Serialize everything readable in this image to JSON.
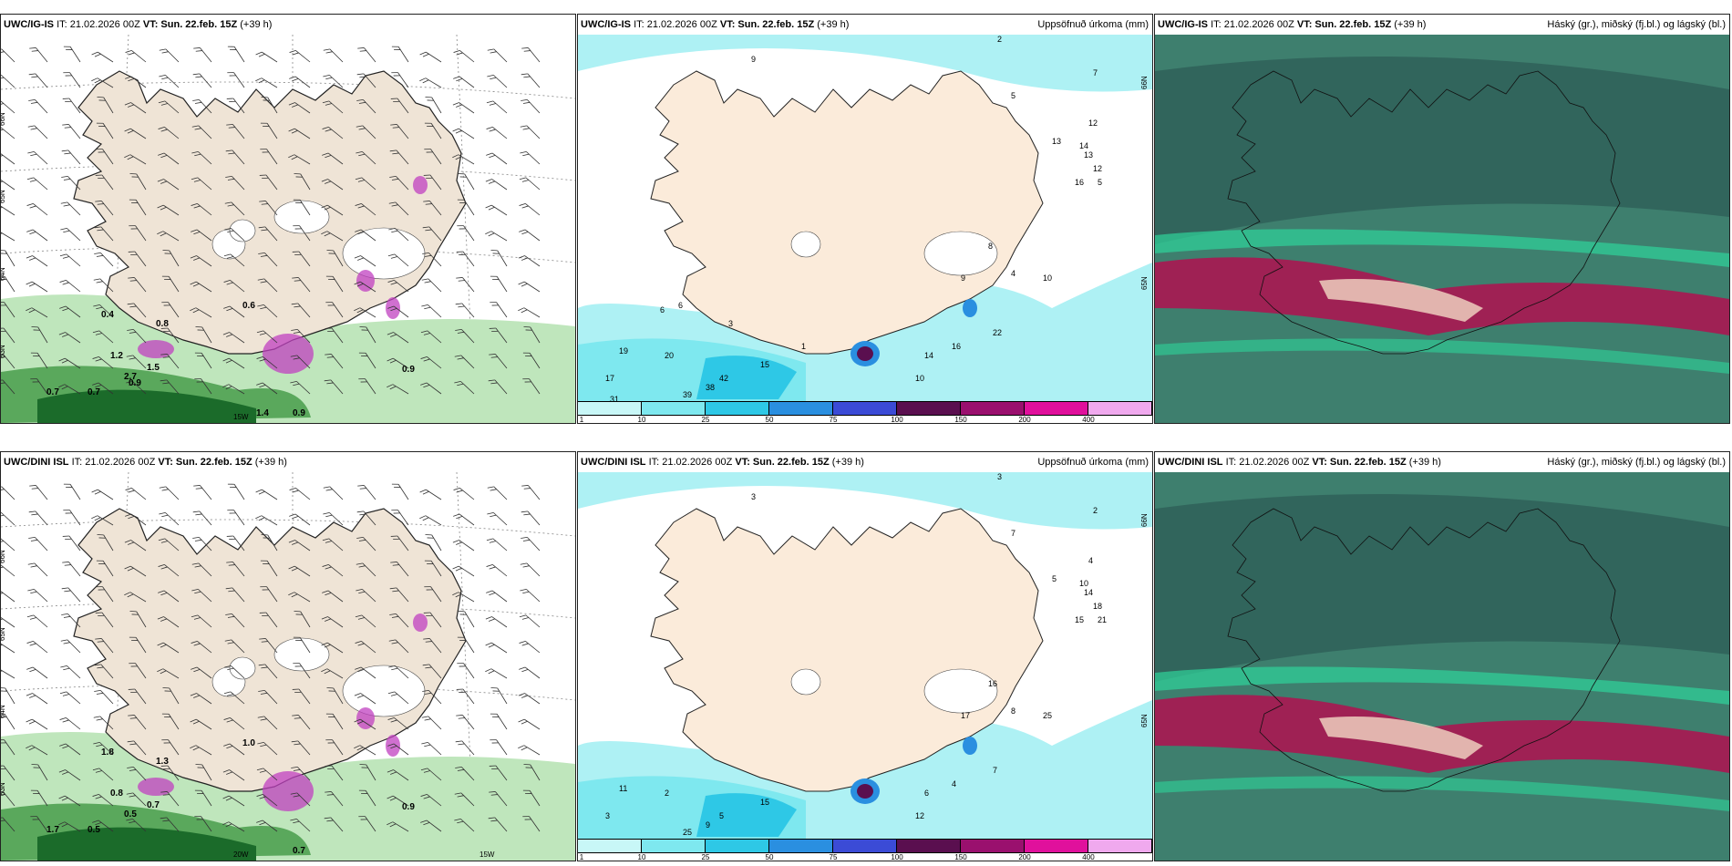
{
  "panels": [
    {
      "id": "p1",
      "kind": "wind",
      "model": "UWC/IG-IS",
      "it": "IT: 21.02.2026 00Z",
      "vt_label": "VT:",
      "vt": "Sun. 22.feb. 15Z",
      "lead": "(+39 h)",
      "right": "",
      "lat_labels": [
        "66N",
        "65N",
        "64N",
        "63N"
      ],
      "lon_labels": [
        "15W"
      ],
      "values": [
        "0.6",
        "0.7",
        "0.9",
        "0.9",
        "0.7",
        "2.7",
        "1.5",
        "0.8",
        "0.4",
        "1.2",
        "0.9",
        "1.4"
      ]
    },
    {
      "id": "p2",
      "kind": "precip",
      "model": "UWC/IG-IS",
      "it": "IT: 21.02.2026 00Z",
      "vt_label": "VT:",
      "vt": "Sun. 22.feb. 15Z",
      "lead": "(+39 h)",
      "right": "Uppsöfnuð úrkoma (mm)",
      "lat_labels": [
        "66N",
        "65N"
      ],
      "values": [
        "2",
        "9",
        "7",
        "5",
        "12",
        "13",
        "14",
        "13",
        "12",
        "16",
        "10",
        "5",
        "8",
        "9",
        "4",
        "22",
        "16",
        "14",
        "10",
        "19",
        "20",
        "17",
        "42",
        "38",
        "39",
        "15",
        "6",
        "6",
        "3",
        "1",
        "31"
      ]
    },
    {
      "id": "p3",
      "kind": "cloud",
      "model": "UWC/IG-IS",
      "it": "IT: 21.02.2026 00Z",
      "vt_label": "VT:",
      "vt": "Sun. 22.feb. 15Z",
      "lead": "(+39 h)",
      "right": "Háský (gr.), miðský (fj.bl.) og lágský (bl.)"
    },
    {
      "id": "p4",
      "kind": "wind",
      "model": "UWC/DINI ISL",
      "it": "IT: 21.02.2026 00Z",
      "vt_label": "VT:",
      "vt": "Sun. 22.feb. 15Z",
      "lead": "(+39 h)",
      "right": "",
      "lat_labels": [
        "66N",
        "65N",
        "64N",
        "63N"
      ],
      "lon_labels": [
        "20W",
        "15W"
      ],
      "values": [
        "1.0",
        "1.7",
        "0.9",
        "0.7",
        "0.5",
        "0.5",
        "0.7",
        "1.3",
        "1.8",
        "0.8"
      ]
    },
    {
      "id": "p5",
      "kind": "precip",
      "model": "UWC/DINI ISL",
      "it": "IT: 21.02.2026 00Z",
      "vt_label": "VT:",
      "vt": "Sun. 22.feb. 15Z",
      "lead": "(+39 h)",
      "right": "Uppsöfnuð úrkoma (mm)",
      "lat_labels": [
        "66N",
        "65N"
      ],
      "values": [
        "3",
        "3",
        "2",
        "7",
        "4",
        "5",
        "10",
        "14",
        "18",
        "15",
        "25",
        "21",
        "16",
        "17",
        "8",
        "7",
        "4",
        "6",
        "12",
        "11",
        "2",
        "3",
        "5",
        "9",
        "25",
        "15"
      ]
    },
    {
      "id": "p6",
      "kind": "cloud",
      "model": "UWC/DINI ISL",
      "it": "IT: 21.02.2026 00Z",
      "vt_label": "VT:",
      "vt": "Sun. 22.feb. 15Z",
      "lead": "(+39 h)",
      "right": "Háský (gr.), miðský (fj.bl.) og lágský (bl.)"
    }
  ],
  "legend": {
    "ticks": [
      "1",
      "10",
      "25",
      "50",
      "75",
      "100",
      "150",
      "200",
      "400"
    ],
    "colors": [
      "#c8f7f7",
      "#7ee8ef",
      "#2ec8e6",
      "#2a8fe0",
      "#3b4bd6",
      "#5a0f4f",
      "#9a106e",
      "#e0109c",
      "#f0a9ee"
    ]
  },
  "colors": {
    "land": "#efe4d6",
    "sea": "#ffffff",
    "precip_light": "#aef1f4",
    "green_dark": "#1b6b2a",
    "green_light": "#bfe6bc",
    "magenta": "#c040c0",
    "cloud_base": "#3e7f6e",
    "cloud_red": "#b01050"
  }
}
